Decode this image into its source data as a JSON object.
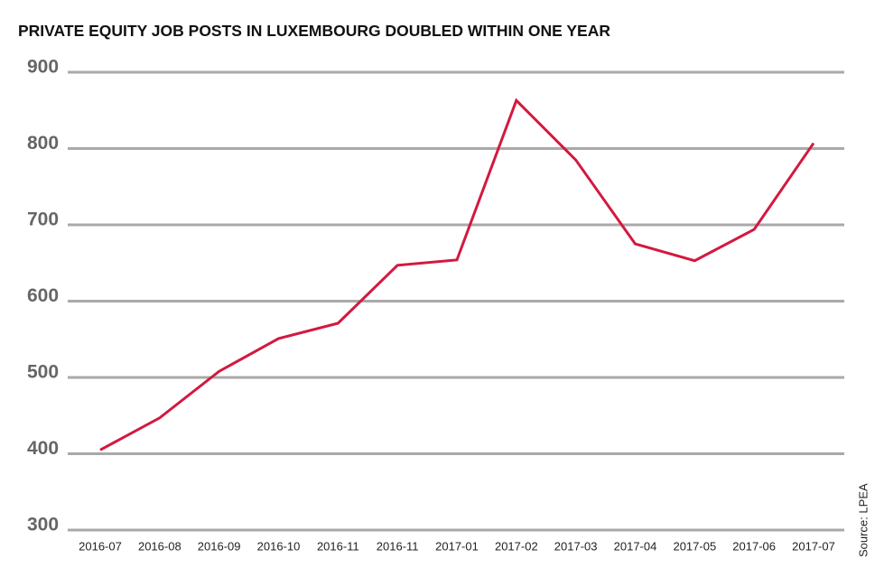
{
  "chart_data": {
    "type": "line",
    "title": "PRIVATE EQUITY JOB POSTS IN LUXEMBOURG DOUBLED WITHIN ONE YEAR",
    "source": "Source: LPEA",
    "categories": [
      "2016-07",
      "2016-08",
      "2016-09",
      "2016-10",
      "2016-11",
      "2016-11",
      "2017-01",
      "2017-02",
      "2017-03",
      "2017-04",
      "2017-05",
      "2017-06",
      "2017-07"
    ],
    "values": [
      405,
      447,
      508,
      551,
      571,
      647,
      654,
      863,
      785,
      675,
      653,
      694,
      807
    ],
    "color": "#d3193f",
    "ylim": [
      300,
      900
    ],
    "yticks": [
      300,
      400,
      500,
      600,
      700,
      800,
      900
    ],
    "grid": true
  }
}
